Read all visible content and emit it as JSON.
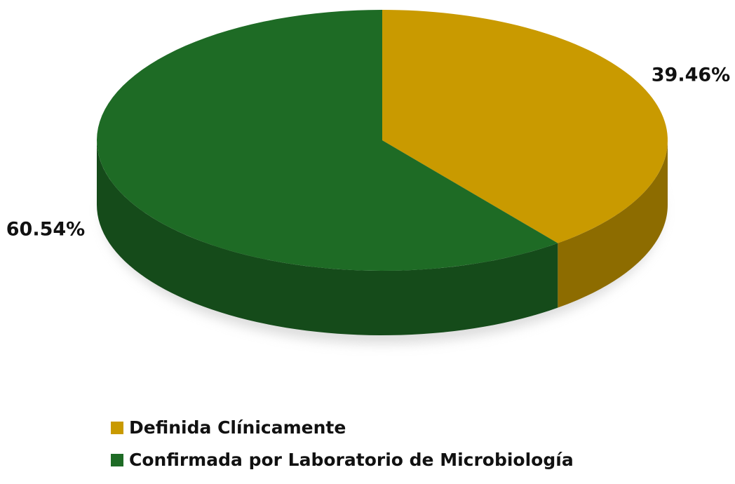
{
  "chart_data": {
    "type": "pie",
    "categories": [
      "Definida Clínicamente",
      "Confirmada por Laboratorio de Microbiología"
    ],
    "values": [
      39.46,
      60.54
    ],
    "value_labels": [
      "39.46%",
      "60.54%"
    ],
    "colors": [
      "#c99a00",
      "#1e6b25"
    ],
    "legend": "bottom"
  }
}
